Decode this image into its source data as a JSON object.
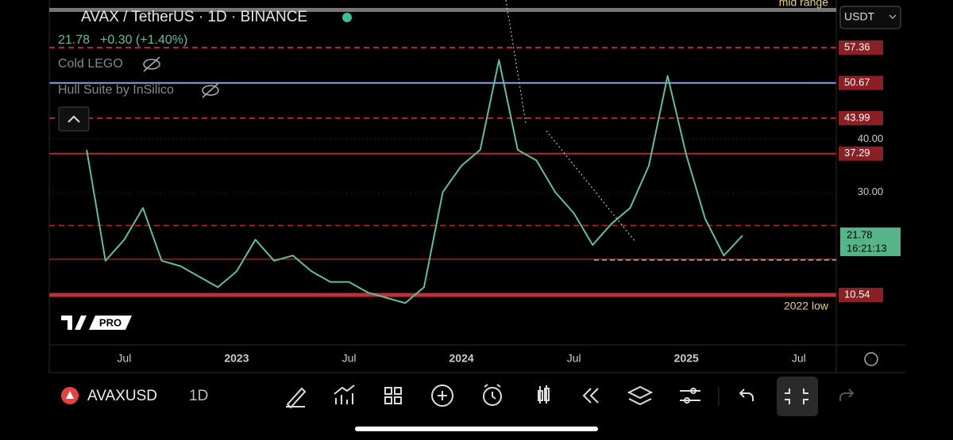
{
  "chart_data": {
    "type": "line",
    "title": "AVAX / TetherUS · 1D · BINANCE",
    "price": 21.78,
    "change": "+0.30 (+1.40%)",
    "indicators": [
      "Cold LEGO",
      "Hull Suite by InSilico"
    ],
    "currency": "USDT",
    "countdown": "16:21:13",
    "symbol": "AVAXUSD",
    "interval": "1D",
    "logo_badge": "PRO",
    "annotations": [
      "mid range",
      "2022 low"
    ],
    "x": [
      "2022-05",
      "2022-06",
      "2022-07",
      "2022-08",
      "2022-09",
      "2022-10",
      "2022-11",
      "2022-12",
      "2023-01",
      "2023-02",
      "2023-03",
      "2023-04",
      "2023-05",
      "2023-06",
      "2023-07",
      "2023-08",
      "2023-09",
      "2023-10",
      "2023-11",
      "2023-12",
      "2024-01",
      "2024-02",
      "2024-03",
      "2024-04",
      "2024-05",
      "2024-06",
      "2024-07",
      "2024-08",
      "2024-09",
      "2024-10",
      "2024-11",
      "2024-12",
      "2025-01",
      "2025-02",
      "2025-03",
      "2025-04"
    ],
    "series": [
      {
        "name": "AVAX",
        "color": "#5fbf9a",
        "values": [
          38,
          17,
          21,
          27,
          17,
          16,
          14,
          12,
          15,
          21,
          17,
          18,
          15,
          13,
          13,
          11,
          10,
          9,
          12,
          30,
          35,
          38,
          55,
          38,
          36,
          30,
          26,
          20,
          24,
          27,
          35,
          52,
          37,
          25,
          18,
          21.78
        ]
      }
    ],
    "xlim": [
      "2022-03",
      "2025-09"
    ],
    "xticks": [
      {
        "value": "2022-07",
        "label": "Jul"
      },
      {
        "value": "2023-01",
        "label": "2023"
      },
      {
        "value": "2023-07",
        "label": "Jul"
      },
      {
        "value": "2024-01",
        "label": "2024"
      },
      {
        "value": "2024-07",
        "label": "Jul"
      },
      {
        "value": "2025-01",
        "label": "2025"
      },
      {
        "value": "2025-07",
        "label": "Jul"
      }
    ],
    "ylim": [
      1.09,
      64.56
    ],
    "yticks": [
      {
        "value": 40,
        "label": "40.00"
      },
      {
        "value": 30,
        "label": "30.00"
      }
    ],
    "grid": true,
    "levels": [
      {
        "value": 57.36,
        "color": "#b3262c",
        "style": "dashed"
      },
      {
        "value": 50.67,
        "color": "#8fa3f0",
        "style": "solid"
      },
      {
        "value": 43.99,
        "color": "#b3262c",
        "style": "dashed"
      },
      {
        "value": 37.29,
        "color": "#b3262c",
        "style": "solid"
      },
      {
        "value": 10.54,
        "color": "#c0303a",
        "style": "thick"
      }
    ],
    "guides": [
      {
        "value": 23.7,
        "color": "#b3262c",
        "style": "dashed"
      },
      {
        "value": 17.3,
        "color": "#b3262c",
        "style": "solid"
      }
    ]
  }
}
